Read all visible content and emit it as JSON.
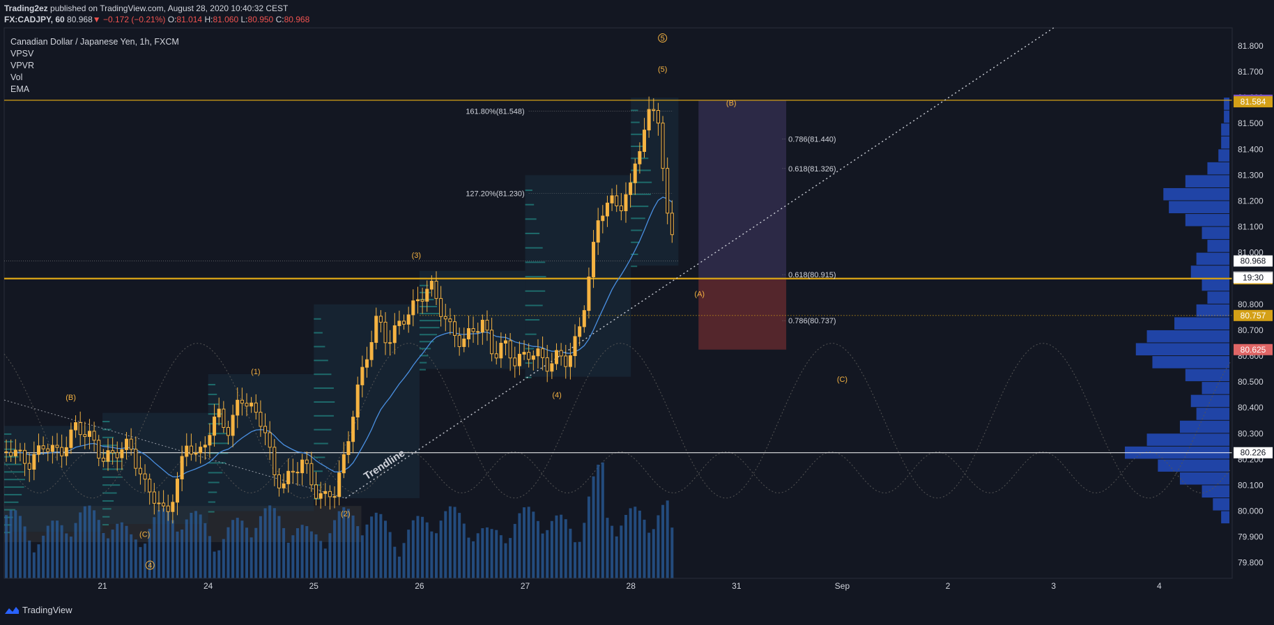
{
  "header": {
    "author": "Trading2ez",
    "published_text": "published on TradingView.com, August 28, 2020 10:40:32 CEST",
    "symbol": "FX:CADJPY, 60",
    "last": "80.968",
    "arrow": "▼",
    "change": "−0.172 (−0.21%)",
    "open_label": "O:",
    "open": "81.014",
    "high_label": "H:",
    "high": "81.060",
    "low_label": "L:",
    "low": "80.950",
    "close_label": "C:",
    "close": "80.968"
  },
  "legend": {
    "title": "Canadian Dollar / Japanese Yen, 1h, FXCM",
    "indicators": [
      "VPSV",
      "VPVR",
      "Vol",
      "EMA"
    ]
  },
  "footer": {
    "brand": "TradingView",
    "logo_icon": "tradingview-logo-icon"
  },
  "colors": {
    "background": "#131722",
    "up": "#f5b342",
    "level_gold": "#d4a017",
    "volume": "#2a5d9c",
    "ema": "#4a90e2",
    "short_zone_top": "#5b4a8a",
    "short_zone_bottom": "#a33a3a",
    "text": "#d1d4dc"
  },
  "chart_data": {
    "type": "candlestick",
    "symbol": "FX:CADJPY",
    "interval": "1h",
    "ylim": [
      79.74,
      81.87
    ],
    "y_ticks": [
      79.8,
      79.9,
      80.0,
      80.1,
      80.2,
      80.3,
      80.4,
      80.5,
      80.6,
      80.7,
      80.8,
      80.9,
      81.0,
      81.1,
      81.2,
      81.3,
      81.4,
      81.5,
      81.6,
      81.7,
      81.8
    ],
    "x_tick_labels": [
      {
        "label": "21",
        "d": 1
      },
      {
        "label": "24",
        "d": 2
      },
      {
        "label": "25",
        "d": 3
      },
      {
        "label": "26",
        "d": 4
      },
      {
        "label": "27",
        "d": 5
      },
      {
        "label": "28",
        "d": 6
      },
      {
        "label": "31",
        "d": 7
      },
      {
        "label": "Sep",
        "d": 8
      },
      {
        "label": "2",
        "d": 9
      },
      {
        "label": "3",
        "d": 10
      },
      {
        "label": "4",
        "d": 11
      }
    ],
    "x_range_days": [
      0.07,
      11.69
    ],
    "price_path": [
      [
        0.0,
        80.22
      ],
      [
        0.15,
        80.24
      ],
      [
        0.3,
        80.18
      ],
      [
        0.45,
        80.26
      ],
      [
        0.6,
        80.22
      ],
      [
        0.75,
        80.33
      ],
      [
        0.9,
        80.28
      ],
      [
        1.0,
        80.2
      ],
      [
        1.1,
        80.22
      ],
      [
        1.25,
        80.26
      ],
      [
        1.4,
        80.1
      ],
      [
        1.5,
        80.05
      ],
      [
        1.6,
        79.98
      ],
      [
        1.7,
        80.1
      ],
      [
        1.8,
        80.27
      ],
      [
        1.9,
        80.2
      ],
      [
        2.0,
        80.3
      ],
      [
        2.1,
        80.38
      ],
      [
        2.2,
        80.3
      ],
      [
        2.3,
        80.45
      ],
      [
        2.4,
        80.4
      ],
      [
        2.5,
        80.35
      ],
      [
        2.55,
        80.3
      ],
      [
        2.62,
        80.14
      ],
      [
        2.7,
        80.1
      ],
      [
        2.8,
        80.15
      ],
      [
        2.9,
        80.2
      ],
      [
        3.0,
        80.08
      ],
      [
        3.1,
        80.05
      ],
      [
        3.2,
        80.08
      ],
      [
        3.3,
        80.22
      ],
      [
        3.4,
        80.45
      ],
      [
        3.5,
        80.6
      ],
      [
        3.6,
        80.75
      ],
      [
        3.7,
        80.65
      ],
      [
        3.8,
        80.72
      ],
      [
        3.9,
        80.77
      ],
      [
        4.0,
        80.82
      ],
      [
        4.1,
        80.88
      ],
      [
        4.2,
        80.78
      ],
      [
        4.3,
        80.7
      ],
      [
        4.4,
        80.65
      ],
      [
        4.5,
        80.7
      ],
      [
        4.6,
        80.73
      ],
      [
        4.7,
        80.6
      ],
      [
        4.8,
        80.65
      ],
      [
        4.9,
        80.58
      ],
      [
        5.0,
        80.6
      ],
      [
        5.1,
        80.62
      ],
      [
        5.2,
        80.56
      ],
      [
        5.3,
        80.6
      ],
      [
        5.4,
        80.58
      ],
      [
        5.5,
        80.68
      ],
      [
        5.55,
        80.78
      ],
      [
        5.62,
        80.95
      ],
      [
        5.7,
        81.15
      ],
      [
        5.8,
        81.2
      ],
      [
        5.9,
        81.18
      ],
      [
        6.0,
        81.25
      ],
      [
        6.05,
        81.38
      ],
      [
        6.12,
        81.45
      ],
      [
        6.2,
        81.58
      ],
      [
        6.26,
        81.52
      ],
      [
        6.3,
        81.32
      ],
      [
        6.35,
        81.12
      ],
      [
        6.4,
        81.08
      ],
      [
        6.45,
        80.98
      ],
      [
        6.43,
        80.968
      ]
    ],
    "volume_profile_bins": [
      79.95,
      80.0,
      80.05,
      80.1,
      80.15,
      80.2,
      80.25,
      80.3,
      80.35,
      80.4,
      80.45,
      80.5,
      80.55,
      80.6,
      80.65,
      80.7,
      80.75,
      80.8,
      80.85,
      80.9,
      80.95,
      81.0,
      81.05,
      81.1,
      81.15,
      81.2,
      81.25,
      81.3,
      81.35,
      81.4,
      81.45,
      81.5,
      81.55
    ],
    "volume_profile_values": [
      3,
      6,
      10,
      18,
      26,
      38,
      30,
      18,
      12,
      14,
      10,
      16,
      28,
      34,
      30,
      20,
      12,
      8,
      10,
      14,
      12,
      8,
      10,
      16,
      22,
      24,
      16,
      8,
      4,
      3,
      3,
      2,
      2
    ],
    "horizontal_levels": [
      {
        "price": 81.59,
        "label": "81.590"
      },
      {
        "price": 81.584,
        "label": "81.584"
      },
      {
        "price": 80.968,
        "label": "80.968"
      },
      {
        "price": 80.905,
        "label": "80.905"
      },
      {
        "price": 80.899,
        "label": "80.899"
      },
      {
        "price": 80.757,
        "label": "80.757"
      },
      {
        "price": 80.625,
        "label": "80.625"
      },
      {
        "price": 80.226,
        "label": "80.226"
      }
    ],
    "countdown": "19:30",
    "fib_levels": [
      {
        "label": "161.80%(81.548)",
        "price": 81.548,
        "d": 5.1
      },
      {
        "label": "127.20%(81.230)",
        "price": 81.23,
        "d": 5.1
      },
      {
        "label": "0.786(81.440)",
        "price": 81.44,
        "d": 7.5
      },
      {
        "label": "0.618(81.326)",
        "price": 81.326,
        "d": 7.5
      },
      {
        "label": "0.618(80.915)",
        "price": 80.915,
        "d": 7.5
      },
      {
        "label": "0.786(80.737)",
        "price": 80.737,
        "d": 7.5
      }
    ],
    "short_position": {
      "d_start": 6.64,
      "d_end": 7.47,
      "top": 81.59,
      "entry": 80.9,
      "stop": 80.625
    },
    "trendline": {
      "label": "Trendline",
      "p1": [
        3.3,
        80.05
      ],
      "p2": [
        10.0,
        81.87
      ]
    },
    "wave_labels": [
      {
        "text": "(B)",
        "d": 0.7,
        "price": 80.43
      },
      {
        "text": "(C)",
        "d": 1.4,
        "price": 79.9
      },
      {
        "text": "4",
        "d": 1.45,
        "price": 79.78,
        "circled": true
      },
      {
        "text": "(1)",
        "d": 2.45,
        "price": 80.53
      },
      {
        "text": "(2)",
        "d": 3.3,
        "price": 79.98
      },
      {
        "text": "(3)",
        "d": 3.97,
        "price": 80.98
      },
      {
        "text": "(4)",
        "d": 5.3,
        "price": 80.44
      },
      {
        "text": "(5)",
        "d": 6.3,
        "price": 81.7
      },
      {
        "text": "5",
        "d": 6.3,
        "price": 81.82,
        "circled": true
      },
      {
        "text": "(B)",
        "d": 6.95,
        "price": 81.57
      },
      {
        "text": "(A)",
        "d": 6.65,
        "price": 80.83
      },
      {
        "text": "(C)",
        "d": 8.0,
        "price": 80.5
      }
    ]
  }
}
